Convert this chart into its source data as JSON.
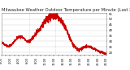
{
  "title": "Milwaukee Weather Outdoor Temperature per Minute (Last 24 Hours)",
  "title_fontsize": 3.8,
  "line_color": "#cc0000",
  "line_width": 0.5,
  "bg_color": "#ffffff",
  "plot_bg_color": "#ffffff",
  "grid_color": "#cccccc",
  "vline_color": "#aaaaaa",
  "vline_positions": [
    0.265,
    0.51
  ],
  "ylim": [
    18,
    56
  ],
  "yticks": [
    20,
    25,
    30,
    35,
    40,
    45,
    50,
    55
  ],
  "ylabel_fontsize": 2.8,
  "xlabel_fontsize": 2.5,
  "num_points": 1440,
  "seed": 42
}
